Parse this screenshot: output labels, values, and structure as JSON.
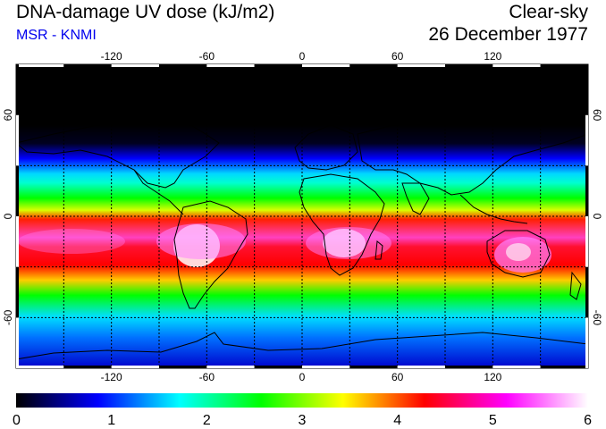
{
  "header": {
    "title": "DNA-damage UV dose (kJ/m2)",
    "subtitle": "MSR - KNMI",
    "sky_condition": "Clear-sky",
    "date": "26 December 1977"
  },
  "map": {
    "lon_range": [
      -180,
      180
    ],
    "lat_range": [
      -90,
      90
    ],
    "lon_ticks": [
      -120,
      -60,
      0,
      60,
      120
    ],
    "lat_ticks": [
      60,
      0,
      -60
    ],
    "grid_spacing_deg": 30,
    "grid": "dashed",
    "background": "#000000"
  },
  "colorbar": {
    "min": 0,
    "max": 6,
    "tick_labels": [
      "0",
      "1",
      "2",
      "3",
      "4",
      "5",
      "6"
    ],
    "color_stops": [
      "#000000",
      "#0000ff",
      "#00ffff",
      "#00ff00",
      "#ffff00",
      "#ff0000",
      "#ff00ff",
      "#ffffff"
    ]
  }
}
